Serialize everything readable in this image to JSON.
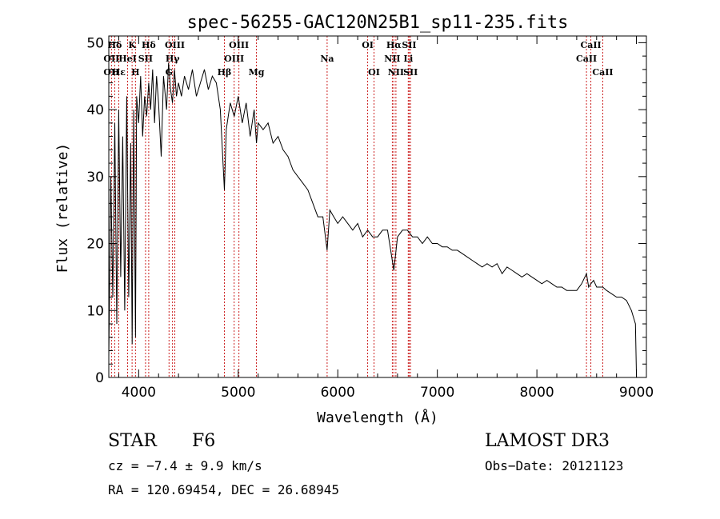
{
  "chart_data": {
    "type": "line",
    "title": "spec-56255-GAC120N25B1_sp11-235.fits",
    "xlabel": "Wavelength (Å)",
    "ylabel": "Flux (relative)",
    "xlim": [
      3700,
      9100
    ],
    "ylim": [
      0,
      51
    ],
    "xticks": [
      4000,
      5000,
      6000,
      7000,
      8000,
      9000
    ],
    "yticks": [
      0,
      10,
      20,
      30,
      40,
      50
    ],
    "series_color": "#000000",
    "line_color": "#cc2222",
    "spectrum": {
      "x": [
        3700,
        3720,
        3740,
        3760,
        3780,
        3800,
        3820,
        3840,
        3860,
        3880,
        3900,
        3920,
        3935,
        3950,
        3968,
        3980,
        4000,
        4020,
        4040,
        4060,
        4080,
        4101,
        4120,
        4140,
        4160,
        4180,
        4200,
        4226,
        4250,
        4280,
        4300,
        4320,
        4340,
        4360,
        4380,
        4400,
        4430,
        4460,
        4500,
        4540,
        4580,
        4620,
        4660,
        4700,
        4740,
        4780,
        4820,
        4861,
        4880,
        4920,
        4960,
        5000,
        5040,
        5080,
        5120,
        5160,
        5183,
        5200,
        5250,
        5300,
        5350,
        5400,
        5450,
        5500,
        5550,
        5600,
        5650,
        5700,
        5750,
        5800,
        5850,
        5893,
        5920,
        5960,
        6000,
        6050,
        6100,
        6150,
        6200,
        6250,
        6300,
        6350,
        6400,
        6450,
        6500,
        6563,
        6600,
        6650,
        6700,
        6750,
        6800,
        6850,
        6900,
        6950,
        7000,
        7050,
        7100,
        7150,
        7200,
        7250,
        7300,
        7350,
        7400,
        7450,
        7500,
        7550,
        7600,
        7650,
        7700,
        7750,
        7800,
        7850,
        7900,
        7950,
        8000,
        8050,
        8100,
        8150,
        8200,
        8250,
        8300,
        8350,
        8400,
        8450,
        8498,
        8520,
        8542,
        8570,
        8600,
        8662,
        8700,
        8750,
        8800,
        8850,
        8900,
        8950,
        8990,
        9000
      ],
      "y": [
        3,
        30,
        12,
        38,
        8,
        40,
        15,
        36,
        10,
        42,
        12,
        35,
        5,
        40,
        6,
        42,
        38,
        45,
        36,
        42,
        39,
        44,
        40,
        46,
        38,
        45,
        41,
        33,
        45,
        40,
        47,
        43,
        41,
        46,
        42,
        44,
        42,
        45,
        43,
        46,
        42,
        44,
        46,
        43,
        45,
        44,
        40,
        28,
        37,
        41,
        39,
        42,
        38,
        41,
        36,
        40,
        35,
        38,
        37,
        38,
        35,
        36,
        34,
        33,
        31,
        30,
        29,
        28,
        26,
        24,
        24,
        19,
        25,
        24,
        23,
        24,
        23,
        22,
        23,
        21,
        22,
        21,
        21,
        22,
        22,
        16,
        21,
        22,
        22,
        21,
        21,
        20,
        21,
        20,
        20,
        19.5,
        19.5,
        19,
        19,
        18.5,
        18,
        17.5,
        17,
        16.5,
        17,
        16.5,
        17,
        15.5,
        16.5,
        16,
        15.5,
        15,
        15.5,
        15,
        14.5,
        14,
        14.5,
        14,
        13.5,
        13.5,
        13,
        13,
        13,
        14,
        15.5,
        13.5,
        14,
        14.5,
        13.5,
        13.5,
        13,
        12.5,
        12,
        12,
        11.5,
        10,
        8,
        0
      ]
    },
    "lines": [
      {
        "label": "Hδ",
        "x": 3760,
        "row": 0
      },
      {
        "label": "OII",
        "x": 3727,
        "row": 1
      },
      {
        "label": "OII",
        "x": 3727,
        "row": 2
      },
      {
        "label": "Hε",
        "x": 3800,
        "row": 2
      },
      {
        "label": "K",
        "x": 3934,
        "row": 0
      },
      {
        "label": "HeI",
        "x": 3889,
        "row": 1
      },
      {
        "label": "H",
        "x": 3968,
        "row": 2
      },
      {
        "label": "Hδ",
        "x": 4101,
        "row": 0
      },
      {
        "label": "SII",
        "x": 4069,
        "row": 1
      },
      {
        "label": "OIII",
        "x": 4363,
        "row": 0
      },
      {
        "label": "Hγ",
        "x": 4340,
        "row": 1
      },
      {
        "label": "G",
        "x": 4305,
        "row": 2
      },
      {
        "label": "OIII",
        "x": 5007,
        "row": 0
      },
      {
        "label": "OIII",
        "x": 4959,
        "row": 1
      },
      {
        "label": "Hβ",
        "x": 4861,
        "row": 2
      },
      {
        "label": "Mg",
        "x": 5183,
        "row": 2
      },
      {
        "label": "Na",
        "x": 5893,
        "row": 1
      },
      {
        "label": "OI",
        "x": 6300,
        "row": 0
      },
      {
        "label": "OI",
        "x": 6364,
        "row": 2
      },
      {
        "label": "Hα",
        "x": 6563,
        "row": 0
      },
      {
        "label": "NII",
        "x": 6548,
        "row": 1
      },
      {
        "label": "NII",
        "x": 6584,
        "row": 2
      },
      {
        "label": "SII",
        "x": 6717,
        "row": 0
      },
      {
        "label": "Li",
        "x": 6708,
        "row": 1
      },
      {
        "label": "SII",
        "x": 6731,
        "row": 2
      },
      {
        "label": "CaII",
        "x": 8542,
        "row": 0
      },
      {
        "label": "CaII",
        "x": 8498,
        "row": 1
      },
      {
        "label": "CaII",
        "x": 8662,
        "row": 2
      }
    ]
  },
  "info": {
    "class": "STAR",
    "subclass": "F6",
    "survey": "LAMOST DR3",
    "cz": "cz = −7.4 ± 9.9 km/s",
    "obs_date": "Obs−Date: 20121123",
    "coords": "RA = 120.69454, DEC =  26.68945"
  }
}
